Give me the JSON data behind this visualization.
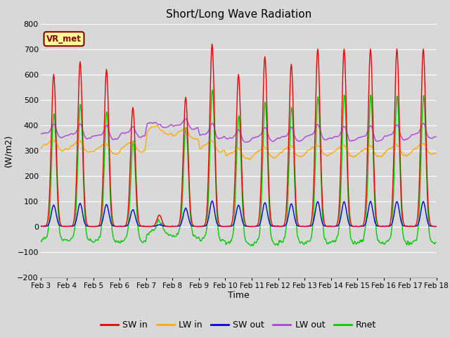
{
  "title": "Short/Long Wave Radiation",
  "xlabel": "Time",
  "ylabel": "(W/m2)",
  "ylim": [
    -200,
    800
  ],
  "yticks": [
    -200,
    -100,
    0,
    100,
    200,
    300,
    400,
    500,
    600,
    700,
    800
  ],
  "background_color": "#d8d8d8",
  "plot_bg_color": "#d8d8d8",
  "grid_color": "#ffffff",
  "colors": {
    "SW_in": "#ee0000",
    "LW_in": "#ffaa00",
    "SW_out": "#0000dd",
    "LW_out": "#aa44dd",
    "Rnet": "#00cc00"
  },
  "annotation_text": "VR_met",
  "annotation_color": "#880000",
  "annotation_bg": "#ffff99",
  "legend_labels": [
    "SW in",
    "LW in",
    "SW out",
    "LW out",
    "Rnet"
  ],
  "n_days": 15,
  "dt_min": 30,
  "start_day": 3,
  "linewidth": 1.0,
  "sw_peaks": [
    600,
    650,
    620,
    470,
    45,
    510,
    720,
    600,
    670,
    640,
    700,
    700,
    700,
    700,
    700
  ],
  "lw_in_base": [
    315,
    310,
    300,
    310,
    380,
    360,
    310,
    280,
    285,
    290,
    295,
    290,
    290,
    295,
    300
  ],
  "lw_out_base": [
    360,
    355,
    350,
    360,
    400,
    390,
    355,
    340,
    345,
    345,
    350,
    345,
    345,
    350,
    355
  ]
}
